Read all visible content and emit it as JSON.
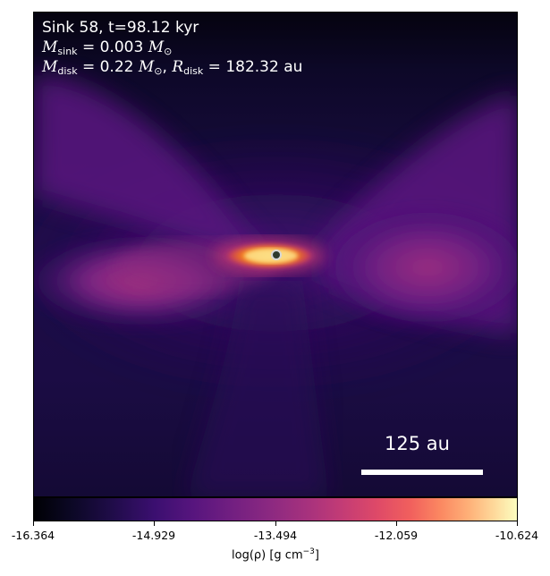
{
  "annotation": {
    "sink_line": "Sink 58, t=98.12 kyr",
    "m_symbol": "M",
    "sink_sub": "sink",
    "sink_value": " = 0.003 ",
    "sun_sub": "⊙",
    "disk_sub": "disk",
    "disk_mass_value": " = 0.22 ",
    "r_symbol": "R",
    "disk_radius_value": " = 182.32 au",
    "comma": ", "
  },
  "scalebar": {
    "label": "125 au"
  },
  "colorbar": {
    "colormap": "inferno",
    "min": -16.364,
    "max": -10.624,
    "ticks": [
      "-16.364",
      "-14.929",
      "-13.494",
      "-12.059",
      "-10.624"
    ],
    "label_prefix": "log(ρ) [g cm",
    "label_exp": "−3",
    "label_suffix": "]"
  },
  "colors": {
    "sink_marker_fill": "#2e3b2e",
    "sink_marker_edge": "#d8d8d8",
    "scalebar": "#ffffff"
  }
}
